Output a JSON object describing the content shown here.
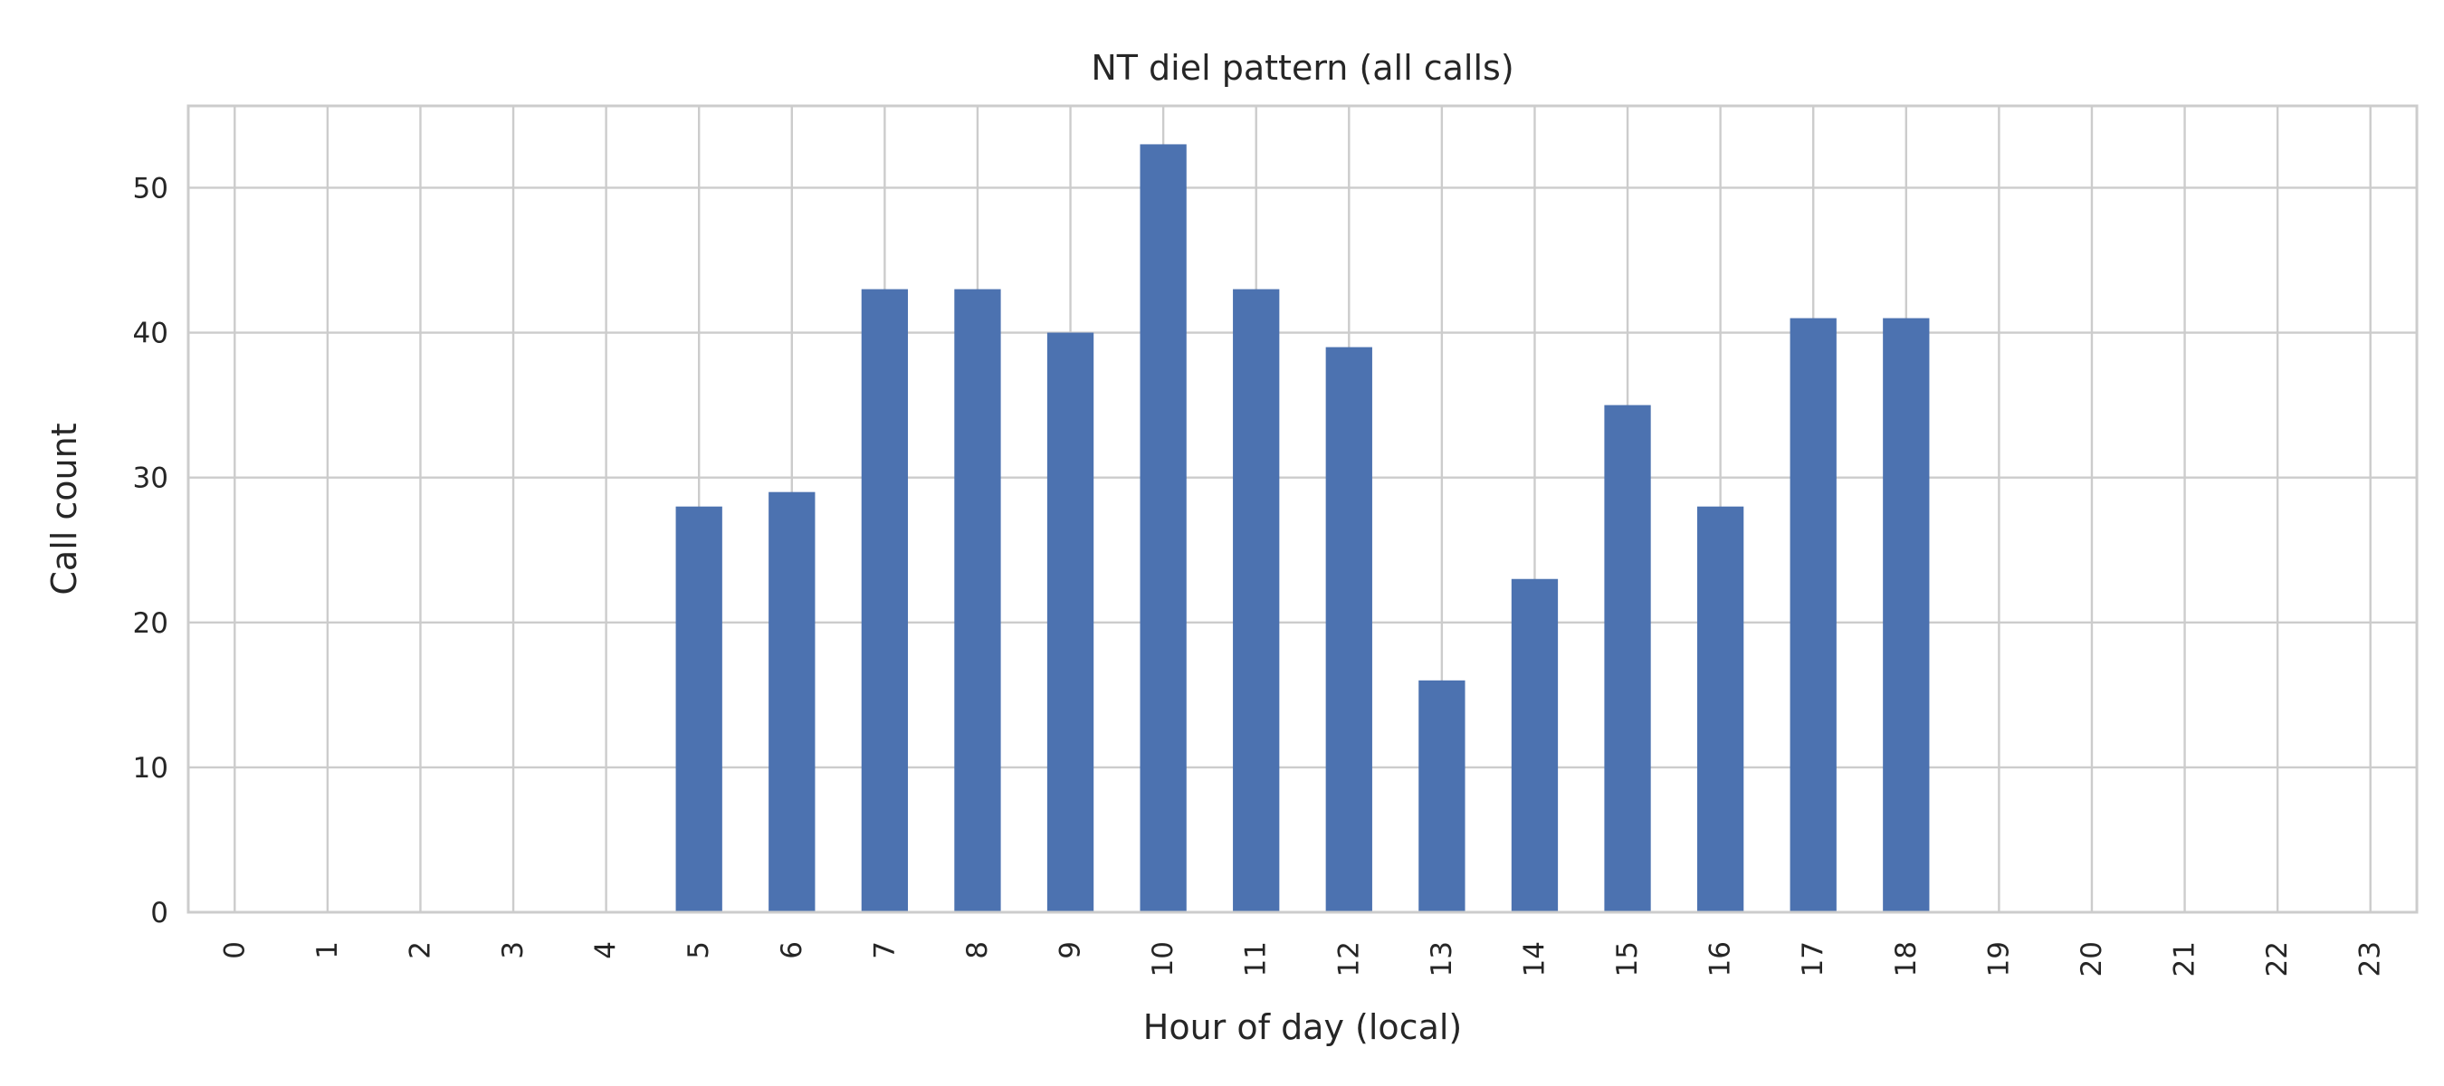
{
  "chart_data": {
    "type": "bar",
    "title": "NT diel pattern (all calls)",
    "xlabel": "Hour of day (local)",
    "ylabel": "Call count",
    "categories": [
      "0",
      "1",
      "2",
      "3",
      "4",
      "5",
      "6",
      "7",
      "8",
      "9",
      "10",
      "11",
      "12",
      "13",
      "14",
      "15",
      "16",
      "17",
      "18",
      "19",
      "20",
      "21",
      "22",
      "23"
    ],
    "values": [
      0,
      0,
      0,
      0,
      0,
      28,
      29,
      43,
      43,
      40,
      53,
      43,
      39,
      16,
      23,
      35,
      28,
      41,
      41,
      0,
      0,
      0,
      0,
      0
    ],
    "ylim": [
      0,
      55.65
    ],
    "yticks": [
      0,
      10,
      20,
      30,
      40,
      50
    ],
    "grid": true,
    "bar_color": "#4c72b0"
  }
}
